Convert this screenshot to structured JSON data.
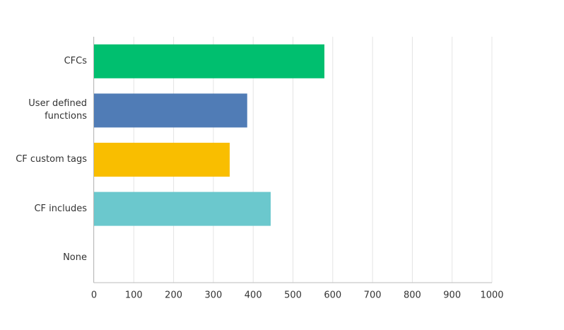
{
  "chart_data": {
    "type": "hbar",
    "categories": [
      "CFCs",
      "User defined functions",
      "CF custom tags",
      "CF includes",
      "None"
    ],
    "values": [
      579,
      385,
      341,
      444,
      0
    ],
    "colors": [
      "#00bf6f",
      "#507cb6",
      "#f9be00",
      "#6bc8cd",
      "#a0a0a0"
    ],
    "xlim": [
      0,
      1000
    ],
    "xticks": [
      0,
      100,
      200,
      300,
      400,
      500,
      600,
      700,
      800,
      900,
      1000
    ],
    "grid": true
  }
}
